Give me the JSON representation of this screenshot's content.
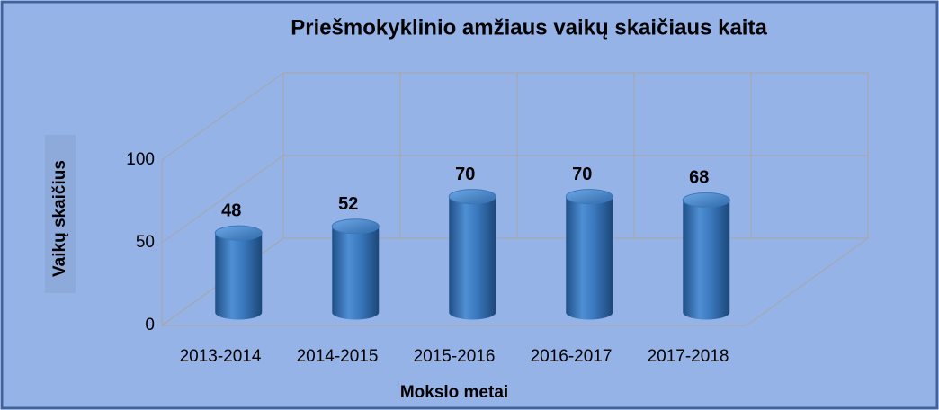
{
  "chart_data": {
    "type": "bar3d",
    "title": "Priešmokyklinio amžiaus vaikų skaičiaus kaita",
    "x_label": "Mokslo metai",
    "y_label": "Vaikų skaičius",
    "categories": [
      "2013-2014",
      "2014-2015",
      "2015-2016",
      "2016-2017",
      "2017-2018"
    ],
    "values": [
      48,
      52,
      70,
      70,
      68
    ],
    "color": "#3a78bd",
    "ylim": [
      0,
      100
    ],
    "yticks": [
      0,
      50,
      100
    ],
    "grid": true
  }
}
